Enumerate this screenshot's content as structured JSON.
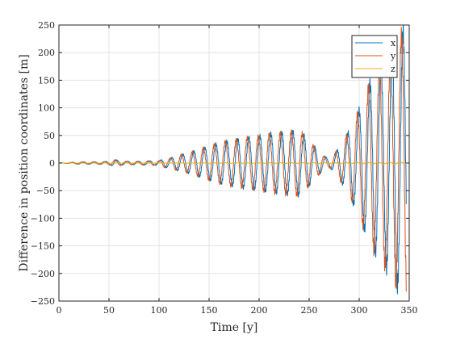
{
  "chart_data": {
    "type": "line",
    "xlabel": "Time [y]",
    "ylabel": "Difference in position coordinates [m]",
    "xlim": [
      0,
      350
    ],
    "ylim": [
      -250,
      250
    ],
    "xticks": [
      0,
      50,
      100,
      150,
      200,
      250,
      300,
      350
    ],
    "yticks": [
      -250,
      -200,
      -150,
      -100,
      -50,
      0,
      50,
      100,
      150,
      200,
      250
    ],
    "grid": true,
    "legend_position": "top-right",
    "period_years": 11,
    "series": [
      {
        "name": "x",
        "color": "#0072BD",
        "phase_deg": 0,
        "amplitude_envelope": [
          [
            0,
            0
          ],
          [
            10,
            1
          ],
          [
            20,
            2
          ],
          [
            30,
            2
          ],
          [
            40,
            2
          ],
          [
            50,
            3
          ],
          [
            55,
            6
          ],
          [
            60,
            5
          ],
          [
            65,
            3
          ],
          [
            70,
            3
          ],
          [
            80,
            3
          ],
          [
            90,
            4
          ],
          [
            100,
            4
          ],
          [
            105,
            8
          ],
          [
            110,
            8
          ],
          [
            120,
            14
          ],
          [
            130,
            18
          ],
          [
            140,
            24
          ],
          [
            150,
            30
          ],
          [
            160,
            36
          ],
          [
            170,
            40
          ],
          [
            180,
            43
          ],
          [
            190,
            46
          ],
          [
            200,
            48
          ],
          [
            210,
            52
          ],
          [
            220,
            54
          ],
          [
            230,
            56
          ],
          [
            240,
            58
          ],
          [
            245,
            50
          ],
          [
            250,
            40
          ],
          [
            255,
            30
          ],
          [
            260,
            20
          ],
          [
            265,
            12
          ],
          [
            270,
            8
          ],
          [
            275,
            15
          ],
          [
            280,
            28
          ],
          [
            285,
            42
          ],
          [
            290,
            58
          ],
          [
            295,
            76
          ],
          [
            300,
            96
          ],
          [
            305,
            118
          ],
          [
            310,
            140
          ],
          [
            315,
            158
          ],
          [
            320,
            170
          ],
          [
            325,
            182
          ],
          [
            330,
            198
          ],
          [
            335,
            212
          ],
          [
            340,
            225
          ],
          [
            345,
            240
          ],
          [
            347,
            240
          ]
        ]
      },
      {
        "name": "y",
        "color": "#D95319",
        "phase_deg": 50,
        "amplitude_envelope": [
          [
            0,
            0
          ],
          [
            10,
            1
          ],
          [
            20,
            2
          ],
          [
            30,
            2
          ],
          [
            40,
            2
          ],
          [
            50,
            3
          ],
          [
            55,
            6
          ],
          [
            60,
            5
          ],
          [
            65,
            3
          ],
          [
            70,
            3
          ],
          [
            80,
            3
          ],
          [
            90,
            4
          ],
          [
            100,
            4
          ],
          [
            105,
            8
          ],
          [
            110,
            8
          ],
          [
            120,
            14
          ],
          [
            130,
            18
          ],
          [
            140,
            24
          ],
          [
            150,
            30
          ],
          [
            160,
            36
          ],
          [
            170,
            40
          ],
          [
            180,
            43
          ],
          [
            190,
            46
          ],
          [
            200,
            48
          ],
          [
            210,
            52
          ],
          [
            220,
            54
          ],
          [
            230,
            56
          ],
          [
            240,
            58
          ],
          [
            245,
            50
          ],
          [
            250,
            40
          ],
          [
            255,
            30
          ],
          [
            260,
            20
          ],
          [
            265,
            12
          ],
          [
            270,
            8
          ],
          [
            275,
            15
          ],
          [
            280,
            28
          ],
          [
            285,
            42
          ],
          [
            290,
            58
          ],
          [
            295,
            76
          ],
          [
            300,
            96
          ],
          [
            305,
            118
          ],
          [
            310,
            140
          ],
          [
            315,
            158
          ],
          [
            320,
            170
          ],
          [
            325,
            182
          ],
          [
            330,
            198
          ],
          [
            335,
            212
          ],
          [
            340,
            225
          ],
          [
            345,
            235
          ],
          [
            347,
            235
          ]
        ]
      },
      {
        "name": "z",
        "color": "#EDB120",
        "phase_deg": 90,
        "amplitude_envelope": [
          [
            0,
            0
          ],
          [
            100,
            0.5
          ],
          [
            200,
            1
          ],
          [
            300,
            1.5
          ],
          [
            347,
            2
          ]
        ]
      }
    ]
  }
}
